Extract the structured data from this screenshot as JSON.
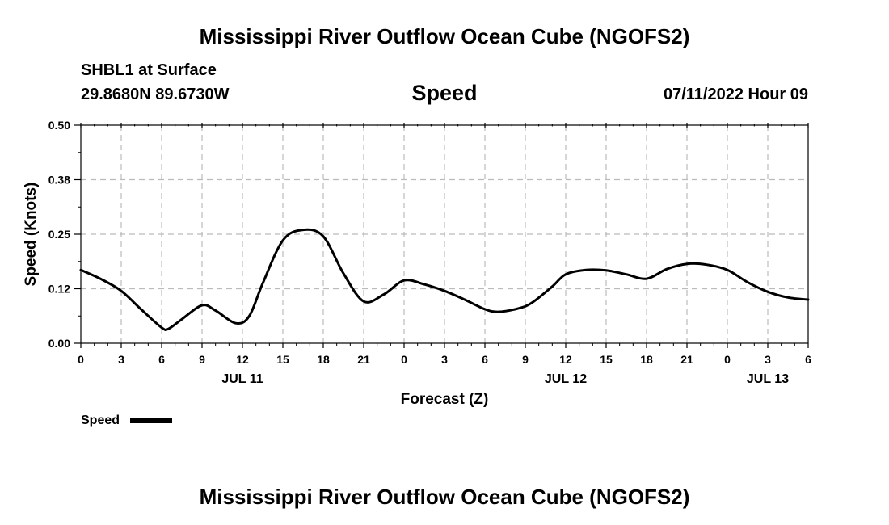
{
  "header": {
    "main_title": "Mississippi River Outflow Ocean Cube (NGOFS2)",
    "station": "SHBL1 at Surface",
    "coordinates": "29.8680N  89.6730W",
    "forecast_time": "07/11/2022 Hour 09"
  },
  "footer": {
    "title": "Mississippi River Outflow Ocean Cube (NGOFS2)"
  },
  "colors": {
    "line": "#000000",
    "grid": "#bbbbbb",
    "background": "#ffffff"
  },
  "chart_data": {
    "type": "line",
    "title": "Speed",
    "xlabel": "Forecast (Z)",
    "ylabel": "Speed (Knots)",
    "x_unit": "hours since JUL 11 00Z",
    "xlim": [
      0,
      54
    ],
    "ylim": [
      0,
      0.5
    ],
    "y_ticks": [
      "0.00",
      "0.12",
      "0.25",
      "0.38",
      "0.50"
    ],
    "y_tick_values": [
      0,
      0.125,
      0.25,
      0.375,
      0.5
    ],
    "x_ticks": [
      "0",
      "3",
      "6",
      "9",
      "12",
      "15",
      "18",
      "21",
      "0",
      "3",
      "6",
      "9",
      "12",
      "15",
      "18",
      "21",
      "0",
      "3",
      "6"
    ],
    "x_tick_values": [
      0,
      3,
      6,
      9,
      12,
      15,
      18,
      21,
      24,
      27,
      30,
      33,
      36,
      39,
      42,
      45,
      48,
      51,
      54
    ],
    "date_labels": [
      {
        "label": "JUL 11",
        "hour": 12
      },
      {
        "label": "JUL 12",
        "hour": 36
      },
      {
        "label": "JUL 13",
        "hour": 51
      }
    ],
    "grid": true,
    "legend": {
      "label": "Speed",
      "position": "bottom-left"
    },
    "series": [
      {
        "name": "Speed",
        "x": [
          0,
          1.5,
          3,
          4.5,
          6,
          6.5,
          7.5,
          9,
          10,
          11.5,
          12.5,
          13.5,
          15,
          16.5,
          18,
          19.5,
          21,
          22.5,
          24,
          25.5,
          27,
          28.5,
          30,
          31,
          32.5,
          33.5,
          35,
          36,
          37.5,
          39,
          40.5,
          42,
          43.5,
          45,
          46.5,
          48,
          49.5,
          51,
          52.5,
          54
        ],
        "values": [
          0.168,
          0.147,
          0.12,
          0.077,
          0.036,
          0.033,
          0.055,
          0.087,
          0.075,
          0.046,
          0.062,
          0.137,
          0.236,
          0.26,
          0.245,
          0.16,
          0.096,
          0.112,
          0.144,
          0.135,
          0.12,
          0.1,
          0.078,
          0.072,
          0.08,
          0.093,
          0.13,
          0.158,
          0.168,
          0.167,
          0.158,
          0.148,
          0.17,
          0.182,
          0.18,
          0.168,
          0.14,
          0.118,
          0.105,
          0.1
        ]
      }
    ]
  }
}
